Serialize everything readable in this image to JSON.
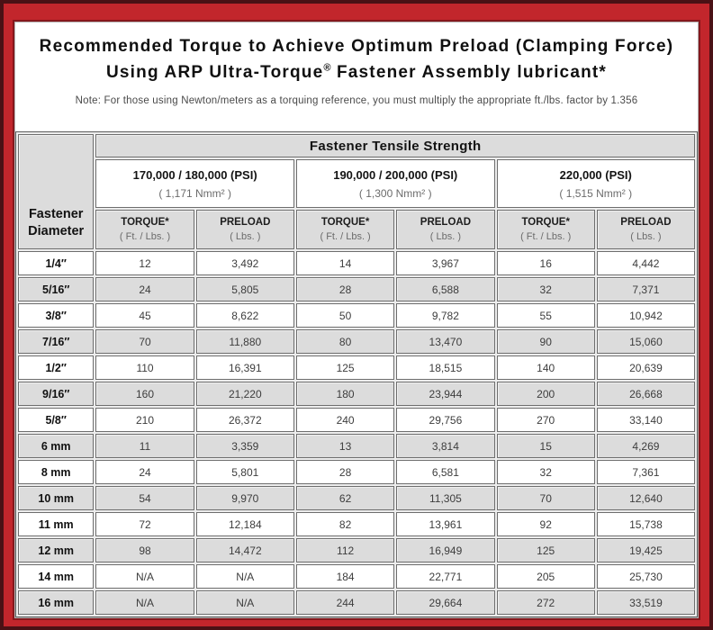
{
  "colors": {
    "frame_red": "#c2262c",
    "frame_dark_edge": "#4a1115",
    "shaded_row_gray": "#dcdcdc",
    "cell_border_gray": "#6e6e6e"
  },
  "title": {
    "line1": "Recommended Torque to Achieve Optimum Preload (Clamping Force)",
    "line2_before": "Using ARP Ultra-Torque",
    "registered_mark": "®",
    "line2_after": " Fastener Assembly lubricant*"
  },
  "note": "Note: For those using Newton/meters as a torquing reference, you must multiply the appropriate ft./lbs. factor by 1.356",
  "table": {
    "corner": {
      "line1": "Fastener",
      "line2": "Diameter"
    },
    "tensile_header": "Fastener Tensile Strength",
    "groups": [
      {
        "psi": "170,000 / 180,000 (PSI)",
        "nmm": "( 1,171 Nmm² )"
      },
      {
        "psi": "190,000 / 200,000 (PSI)",
        "nmm": "( 1,300 Nmm² )"
      },
      {
        "psi": "220,000 (PSI)",
        "nmm": "( 1,515 Nmm² )"
      }
    ],
    "columns": {
      "torque": "TORQUE*",
      "torque_sub": "( Ft. / Lbs. )",
      "preload": "PRELOAD",
      "preload_sub": "( Lbs. )"
    },
    "rows": [
      {
        "diameter": "1/4″",
        "values": [
          "12",
          "3,492",
          "14",
          "3,967",
          "16",
          "4,442"
        ]
      },
      {
        "diameter": "5/16″",
        "values": [
          "24",
          "5,805",
          "28",
          "6,588",
          "32",
          "7,371"
        ]
      },
      {
        "diameter": "3/8″",
        "values": [
          "45",
          "8,622",
          "50",
          "9,782",
          "55",
          "10,942"
        ]
      },
      {
        "diameter": "7/16″",
        "values": [
          "70",
          "11,880",
          "80",
          "13,470",
          "90",
          "15,060"
        ]
      },
      {
        "diameter": "1/2″",
        "values": [
          "110",
          "16,391",
          "125",
          "18,515",
          "140",
          "20,639"
        ]
      },
      {
        "diameter": "9/16″",
        "values": [
          "160",
          "21,220",
          "180",
          "23,944",
          "200",
          "26,668"
        ]
      },
      {
        "diameter": "5/8″",
        "values": [
          "210",
          "26,372",
          "240",
          "29,756",
          "270",
          "33,140"
        ]
      },
      {
        "diameter": "6 mm",
        "values": [
          "11",
          "3,359",
          "13",
          "3,814",
          "15",
          "4,269"
        ]
      },
      {
        "diameter": "8 mm",
        "values": [
          "24",
          "5,801",
          "28",
          "6,581",
          "32",
          "7,361"
        ]
      },
      {
        "diameter": "10 mm",
        "values": [
          "54",
          "9,970",
          "62",
          "11,305",
          "70",
          "12,640"
        ]
      },
      {
        "diameter": "11 mm",
        "values": [
          "72",
          "12,184",
          "82",
          "13,961",
          "92",
          "15,738"
        ]
      },
      {
        "diameter": "12 mm",
        "values": [
          "98",
          "14,472",
          "112",
          "16,949",
          "125",
          "19,425"
        ]
      },
      {
        "diameter": "14 mm",
        "values": [
          "N/A",
          "N/A",
          "184",
          "22,771",
          "205",
          "25,730"
        ]
      },
      {
        "diameter": "16 mm",
        "values": [
          "N/A",
          "N/A",
          "244",
          "29,664",
          "272",
          "33,519"
        ]
      }
    ]
  }
}
